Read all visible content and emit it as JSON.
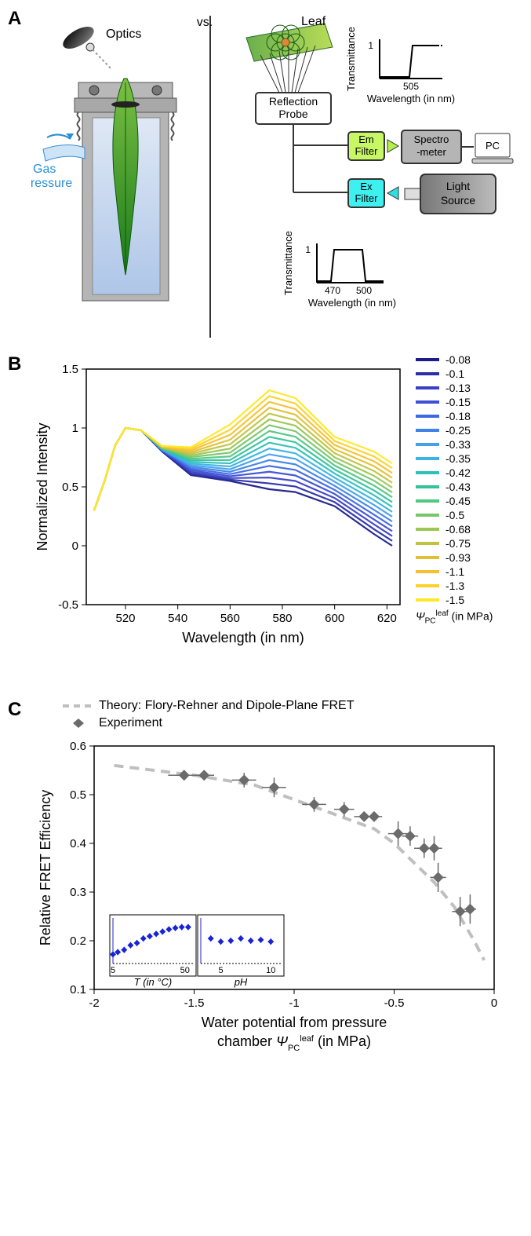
{
  "panelA": {
    "label": "A",
    "vs": "vs.",
    "left": {
      "optics_label": "Optics",
      "gas_label": "Gas\npressure"
    },
    "right": {
      "leaf_label": "Leaf",
      "reflection_probe": "Reflection\nProbe",
      "em_filter": "Em\nFilter",
      "ex_filter": "Ex\nFilter",
      "spectrometer": "Spectro\n-meter",
      "pc": "PC",
      "light_source": "Light\nSource",
      "mini_chart_top": {
        "ylabel": "Transmittance",
        "xlabel": "Wavelength (in nm)",
        "ytick": "1",
        "xtick": "505"
      },
      "mini_chart_bottom": {
        "ylabel": "Transmittance",
        "xlabel": "Wavelength (in nm)",
        "ytick": "1",
        "xticks": [
          "470",
          "500"
        ]
      }
    }
  },
  "panelB": {
    "label": "B",
    "chart": {
      "type": "line",
      "xlabel": "Wavelength (in nm)",
      "ylabel": "Normalized Intensity",
      "xlim": [
        505,
        625
      ],
      "ylim": [
        -0.5,
        1.5
      ],
      "xticks": [
        520,
        540,
        560,
        580,
        600,
        620
      ],
      "yticks": [
        -0.5,
        0,
        0.5,
        1,
        1.5
      ],
      "label_fontsize": 18,
      "tick_fontsize": 15,
      "background_color": "#ffffff"
    },
    "legend": {
      "title": "Ψₗᶜᵉᵃᶠ (in MPa)",
      "title_sub": "PC",
      "title_sup": "leaf",
      "items": [
        {
          "label": "-0.08",
          "color": "#1b1e8a"
        },
        {
          "label": "-0.1",
          "color": "#2a2fa8"
        },
        {
          "label": "-0.13",
          "color": "#3a3fc6"
        },
        {
          "label": "-0.15",
          "color": "#3c50d4"
        },
        {
          "label": "-0.18",
          "color": "#3e68e2"
        },
        {
          "label": "-0.25",
          "color": "#3f83e8"
        },
        {
          "label": "-0.33",
          "color": "#43a0ed"
        },
        {
          "label": "-0.35",
          "color": "#3bb3e0"
        },
        {
          "label": "-0.42",
          "color": "#2dbfbc"
        },
        {
          "label": "-0.43",
          "color": "#32c39b"
        },
        {
          "label": "-0.45",
          "color": "#52c683"
        },
        {
          "label": "-0.5",
          "color": "#78c66b"
        },
        {
          "label": "-0.68",
          "color": "#9bc654"
        },
        {
          "label": "-0.75",
          "color": "#bec442"
        },
        {
          "label": "-0.93",
          "color": "#e1c035"
        },
        {
          "label": "-1.1",
          "color": "#f4c02f"
        },
        {
          "label": "-1.3",
          "color": "#fbd229"
        },
        {
          "label": "-1.5",
          "color": "#fee825"
        }
      ]
    },
    "series_peak_shape_note": "All series rise sharply from ~510nm to peak at ~520nm (normalized to 1), dip, then second peak ~575-580nm whose height increases from ~0.5 (blue, -0.08) to ~1.3 (yellow, -1.5), then decay toward 620nm"
  },
  "panelC": {
    "label": "C",
    "legend": {
      "theory": "Theory: Flory-Rehner and Dipole-Plane FRET",
      "experiment": "Experiment",
      "theory_style": {
        "type": "dashed",
        "color": "#bfbfbf",
        "width": 3
      },
      "experiment_style": {
        "marker": "diamond",
        "color": "#6b6b6b",
        "size": 10
      }
    },
    "chart": {
      "type": "scatter_with_curve",
      "xlabel": "Water potential from pressure chamber Ψₗᶜᵉᵃᶠ (in MPa)",
      "xlabel_main": "Water potential from pressure",
      "xlabel_sub": "chamber",
      "xlabel_units": "(in MPa)",
      "psi_sym_sub": "PC",
      "psi_sym_sup": "leaf",
      "ylabel": "Relative FRET Efficiency",
      "xlim": [
        -2,
        0
      ],
      "ylim": [
        0.1,
        0.6
      ],
      "xticks": [
        -2,
        -1.5,
        -1,
        -0.5,
        0
      ],
      "yticks": [
        0.1,
        0.2,
        0.3,
        0.4,
        0.5,
        0.6
      ],
      "label_fontsize": 18,
      "tick_fontsize": 15,
      "theory_curve": [
        {
          "x": -1.9,
          "y": 0.56
        },
        {
          "x": -1.5,
          "y": 0.54
        },
        {
          "x": -1.2,
          "y": 0.52
        },
        {
          "x": -1.0,
          "y": 0.49
        },
        {
          "x": -0.8,
          "y": 0.46
        },
        {
          "x": -0.6,
          "y": 0.43
        },
        {
          "x": -0.5,
          "y": 0.4
        },
        {
          "x": -0.4,
          "y": 0.36
        },
        {
          "x": -0.3,
          "y": 0.32
        },
        {
          "x": -0.2,
          "y": 0.27
        },
        {
          "x": -0.1,
          "y": 0.2
        },
        {
          "x": -0.05,
          "y": 0.16
        }
      ],
      "experiment_points": [
        {
          "x": -1.55,
          "y": 0.54,
          "ex": 0.08,
          "ey": 0.01
        },
        {
          "x": -1.45,
          "y": 0.54,
          "ex": 0.05,
          "ey": 0.01
        },
        {
          "x": -1.25,
          "y": 0.53,
          "ex": 0.06,
          "ey": 0.015
        },
        {
          "x": -1.1,
          "y": 0.515,
          "ex": 0.06,
          "ey": 0.02
        },
        {
          "x": -0.9,
          "y": 0.48,
          "ex": 0.06,
          "ey": 0.015
        },
        {
          "x": -0.75,
          "y": 0.47,
          "ex": 0.05,
          "ey": 0.015
        },
        {
          "x": -0.65,
          "y": 0.455,
          "ex": 0.05,
          "ey": 0.01
        },
        {
          "x": -0.6,
          "y": 0.455,
          "ex": 0.04,
          "ey": 0.01
        },
        {
          "x": -0.48,
          "y": 0.42,
          "ex": 0.05,
          "ey": 0.025
        },
        {
          "x": -0.42,
          "y": 0.415,
          "ex": 0.04,
          "ey": 0.02
        },
        {
          "x": -0.35,
          "y": 0.39,
          "ex": 0.05,
          "ey": 0.02
        },
        {
          "x": -0.3,
          "y": 0.39,
          "ex": 0.04,
          "ey": 0.025
        },
        {
          "x": -0.28,
          "y": 0.33,
          "ex": 0.04,
          "ey": 0.03
        },
        {
          "x": -0.17,
          "y": 0.26,
          "ex": 0.04,
          "ey": 0.03
        },
        {
          "x": -0.12,
          "y": 0.265,
          "ex": 0.03,
          "ey": 0.03
        }
      ],
      "marker_color": "#6b6b6b",
      "curve_color": "#bfbfbf"
    },
    "inset_temp": {
      "xlabel": "T (in °C)",
      "xlim": [
        5,
        55
      ],
      "xticks": [
        5,
        50
      ],
      "points": [
        {
          "x": 5,
          "y": 0.22
        },
        {
          "x": 8,
          "y": 0.225
        },
        {
          "x": 12,
          "y": 0.23
        },
        {
          "x": 16,
          "y": 0.24
        },
        {
          "x": 20,
          "y": 0.245
        },
        {
          "x": 24,
          "y": 0.255
        },
        {
          "x": 28,
          "y": 0.26
        },
        {
          "x": 32,
          "y": 0.265
        },
        {
          "x": 36,
          "y": 0.27
        },
        {
          "x": 40,
          "y": 0.275
        },
        {
          "x": 44,
          "y": 0.278
        },
        {
          "x": 48,
          "y": 0.28
        },
        {
          "x": 52,
          "y": 0.28
        }
      ],
      "ylim": [
        0.2,
        0.3
      ],
      "marker_color": "#1822d6"
    },
    "inset_ph": {
      "xlabel": "pH",
      "xlim": [
        3,
        11
      ],
      "xticks": [
        5,
        10
      ],
      "points": [
        {
          "x": 4,
          "y": 0.255
        },
        {
          "x": 5,
          "y": 0.248
        },
        {
          "x": 6,
          "y": 0.25
        },
        {
          "x": 7,
          "y": 0.255
        },
        {
          "x": 8,
          "y": 0.25
        },
        {
          "x": 9,
          "y": 0.252
        },
        {
          "x": 10,
          "y": 0.248
        }
      ],
      "ylim": [
        0.2,
        0.3
      ],
      "marker_color": "#1822d6"
    }
  }
}
